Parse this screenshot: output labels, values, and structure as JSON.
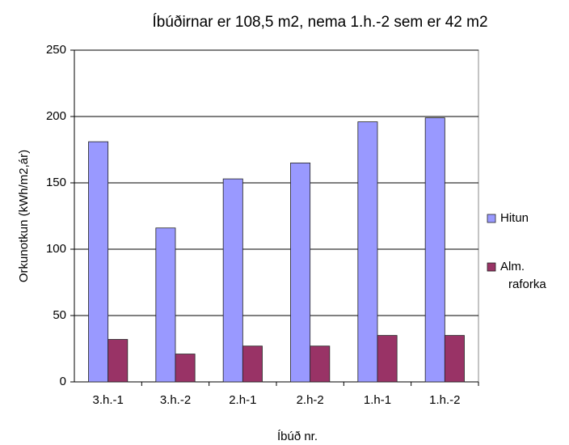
{
  "chart_data": {
    "type": "bar",
    "title": "Íbúðirnar er 108,5 m2,  nema 1.h.-2  sem er 42 m2",
    "x_label": "Íbúð nr.",
    "y_label": "Orkunotkun (kWh/m2,ár)",
    "categories": [
      "3.h.-1",
      "3.h.-2",
      "2.h-1",
      "2.h-2",
      "1.h-1",
      "1.h.-2"
    ],
    "series": [
      {
        "name": "Hitun",
        "color": "#9999ff",
        "values": [
          181,
          116,
          153,
          165,
          196,
          199
        ]
      },
      {
        "name": "Alm. raforka",
        "color": "#993366",
        "values": [
          32,
          21,
          27,
          27,
          35,
          35
        ]
      }
    ],
    "ylim": [
      0,
      250
    ],
    "yticks": [
      0,
      50,
      100,
      150,
      200,
      250
    ],
    "grid": true,
    "legend": "right"
  }
}
